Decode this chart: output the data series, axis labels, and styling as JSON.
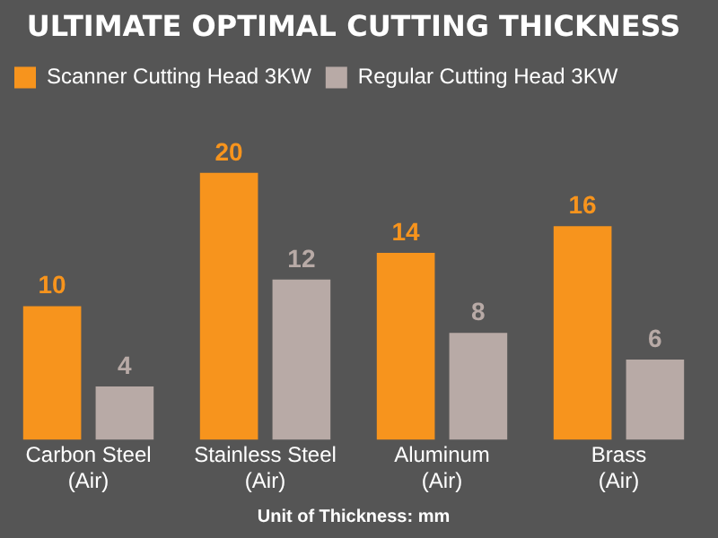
{
  "chart_data": {
    "type": "bar",
    "title": "ULTIMATE OPTIMAL CUTTING THICKNESS",
    "xlabel": "Unit of Thickness: mm",
    "categories": [
      "Carbon Steel\n(Air)",
      "Stainless Steel\n(Air)",
      "Aluminum\n(Air)",
      "Brass\n(Air)"
    ],
    "series": [
      {
        "name": "Scanner Cutting Head 3KW",
        "color": "#f7941d",
        "values": [
          10,
          20,
          14,
          16
        ]
      },
      {
        "name": "Regular Cutting Head 3KW",
        "color": "#b8aaa6",
        "values": [
          4,
          12,
          8,
          6
        ]
      }
    ],
    "data_labels": true,
    "grid": false,
    "legend": "top left"
  }
}
